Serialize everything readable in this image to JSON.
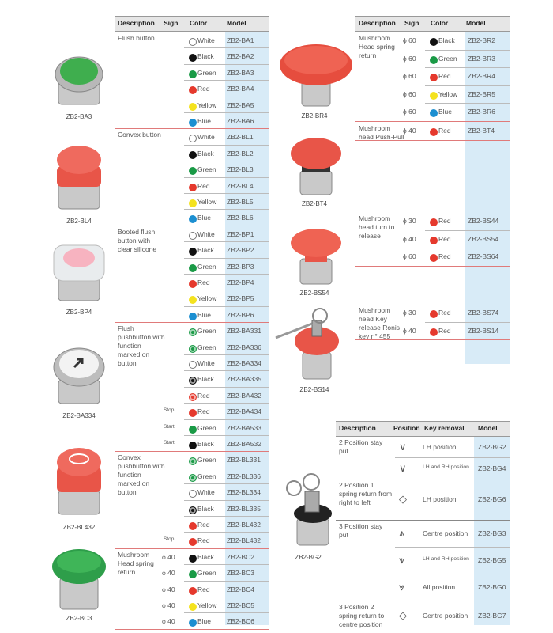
{
  "products": [
    {
      "caption": "ZB2-BA3"
    },
    {
      "caption": "ZB2-BL4"
    },
    {
      "caption": "ZB2-BP4"
    },
    {
      "caption": "ZB2-BA334"
    },
    {
      "caption": "ZB2-BL432"
    },
    {
      "caption": "ZB2-BC3"
    },
    {
      "caption": "ZB2-BR4"
    },
    {
      "caption": "ZB2-BT4"
    },
    {
      "caption": "ZB2-BS54"
    },
    {
      "caption": "ZB2-BS14"
    },
    {
      "caption": "ZB2-BG2"
    }
  ],
  "colors": {
    "White": "#ffffff",
    "Black": "#111111",
    "Green": "#1a9a46",
    "Red": "#e5392d",
    "Yellow": "#f4e21e",
    "Blue": "#1c8fd1",
    "model_bg": "#d8ebf7",
    "header_bg": "#e6e6e6"
  },
  "left_table": {
    "headers": [
      "Description",
      "Sign",
      "Color",
      "Model"
    ],
    "groups": [
      {
        "desc": "Flush button",
        "rows": [
          {
            "sign": "",
            "color": "White",
            "model": "ZB2-BA1"
          },
          {
            "sign": "",
            "color": "Black",
            "model": "ZB2-BA2"
          },
          {
            "sign": "",
            "color": "Green",
            "model": "ZB2-BA3"
          },
          {
            "sign": "",
            "color": "Red",
            "model": "ZB2-BA4"
          },
          {
            "sign": "",
            "color": "Yellow",
            "model": "ZB2-BA5"
          },
          {
            "sign": "",
            "color": "Blue",
            "model": "ZB2-BA6"
          }
        ]
      },
      {
        "desc": "Convex button",
        "rows": [
          {
            "sign": "",
            "color": "White",
            "model": "ZB2-BL1"
          },
          {
            "sign": "",
            "color": "Black",
            "model": "ZB2-BL2"
          },
          {
            "sign": "",
            "color": "Green",
            "model": "ZB2-BL3"
          },
          {
            "sign": "",
            "color": "Red",
            "model": "ZB2-BL4"
          },
          {
            "sign": "",
            "color": "Yellow",
            "model": "ZB2-BL5"
          },
          {
            "sign": "",
            "color": "Blue",
            "model": "ZB2-BL6"
          }
        ]
      },
      {
        "desc": "Booted flush button with clear silicone",
        "rows": [
          {
            "sign": "",
            "color": "White",
            "model": "ZB2-BP1"
          },
          {
            "sign": "",
            "color": "Black",
            "model": "ZB2-BP2"
          },
          {
            "sign": "",
            "color": "Green",
            "model": "ZB2-BP3"
          },
          {
            "sign": "",
            "color": "Red",
            "model": "ZB2-BP4"
          },
          {
            "sign": "",
            "color": "Yellow",
            "model": "ZB2-BP5"
          },
          {
            "sign": "",
            "color": "Blue",
            "model": "ZB2-BP6"
          }
        ]
      },
      {
        "desc": "Flush pushbutton with function marked on button",
        "rows": [
          {
            "sign": "",
            "color": "Green",
            "model": "ZB2-BA331"
          },
          {
            "sign": "",
            "color": "Green",
            "model": "ZB2-BA336"
          },
          {
            "sign": "",
            "color": "White",
            "model": "ZB2-BA334"
          },
          {
            "sign": "",
            "color": "Black",
            "model": "ZB2-BA335"
          },
          {
            "sign": "",
            "color": "Red",
            "model": "ZB2-BA432"
          },
          {
            "sign": "Stop",
            "color": "Red",
            "model": "ZB2-BA434"
          },
          {
            "sign": "Start",
            "color": "Green",
            "model": "ZB2-BA533"
          },
          {
            "sign": "Start",
            "color": "Black",
            "model": "ZB2-BA532"
          }
        ]
      },
      {
        "desc": "Convex pushbutton with function marked on button",
        "rows": [
          {
            "sign": "",
            "color": "Green",
            "model": "ZB2-BL331"
          },
          {
            "sign": "",
            "color": "Green",
            "model": "ZB2-BL336"
          },
          {
            "sign": "",
            "color": "White",
            "model": "ZB2-BL334"
          },
          {
            "sign": "",
            "color": "Black",
            "model": "ZB2-BL335"
          },
          {
            "sign": "",
            "color": "Red",
            "model": "ZB2-BL432"
          },
          {
            "sign": "Stop",
            "color": "Red",
            "model": "ZB2-BL432"
          }
        ]
      },
      {
        "desc": "Mushroom Head spring return",
        "rows": [
          {
            "sign": "ϕ 40",
            "color": "Black",
            "model": "ZB2-BC2"
          },
          {
            "sign": "ϕ 40",
            "color": "Green",
            "model": "ZB2-BC3"
          },
          {
            "sign": "ϕ 40",
            "color": "Red",
            "model": "ZB2-BC4"
          },
          {
            "sign": "ϕ 40",
            "color": "Yellow",
            "model": "ZB2-BC5"
          },
          {
            "sign": "ϕ 40",
            "color": "Blue",
            "model": "ZB2-BC6"
          }
        ]
      }
    ]
  },
  "right_table": {
    "headers": [
      "Description",
      "Sign",
      "Color",
      "Model"
    ],
    "groups": [
      {
        "desc": "Mushroom Head spring return",
        "rows": [
          {
            "sign": "ϕ 60",
            "color": "Black",
            "model": "ZB2-BR2"
          },
          {
            "sign": "ϕ 60",
            "color": "Green",
            "model": "ZB2-BR3"
          },
          {
            "sign": "ϕ 60",
            "color": "Red",
            "model": "ZB2-BR4"
          },
          {
            "sign": "ϕ 60",
            "color": "Yellow",
            "model": "ZB2-BR5"
          },
          {
            "sign": "ϕ 60",
            "color": "Blue",
            "model": "ZB2-BR6"
          }
        ]
      },
      {
        "desc": "Mushroom head Push-Pull",
        "rows": [
          {
            "sign": "ϕ 40",
            "color": "Red",
            "model": "ZB2-BT4"
          }
        ]
      },
      {
        "desc": "Mushroom head turn to release",
        "rows": [
          {
            "sign": "ϕ 30",
            "color": "Red",
            "model": "ZB2-BS44"
          },
          {
            "sign": "ϕ 40",
            "color": "Red",
            "model": "ZB2-BS54"
          },
          {
            "sign": "ϕ 60",
            "color": "Red",
            "model": "ZB2-BS64"
          }
        ]
      },
      {
        "desc": "Mushroom head Key release Ronis key n° 455",
        "rows": [
          {
            "sign": "ϕ 30",
            "color": "Red",
            "model": "ZB2-BS74"
          },
          {
            "sign": "ϕ 40",
            "color": "Red",
            "model": "ZB2-BS14"
          }
        ]
      }
    ]
  },
  "selector_table": {
    "headers": [
      "Description",
      "Position",
      "Key removal",
      "Model"
    ],
    "groups": [
      {
        "desc": "2 Position stay put",
        "rows": [
          {
            "removal": "LH position",
            "model": "ZB2-BG2"
          },
          {
            "removal": "LH and RH position",
            "model": "ZB2-BG4"
          }
        ]
      },
      {
        "desc": "2 Position 1 spring return from right to left",
        "rows": [
          {
            "removal": "LH position",
            "model": "ZB2-BG6"
          }
        ]
      },
      {
        "desc": "3 Position stay put",
        "rows": [
          {
            "removal": "Centre position",
            "model": "ZB2-BG3"
          },
          {
            "removal": "LH and RH position",
            "model": "ZB2-BG5"
          },
          {
            "removal": "All position",
            "model": "ZB2-BG0"
          }
        ]
      },
      {
        "desc": "3 Position 2 spring return to centre position",
        "rows": [
          {
            "removal": "Centre position",
            "model": "ZB2-BG7"
          }
        ]
      }
    ]
  }
}
